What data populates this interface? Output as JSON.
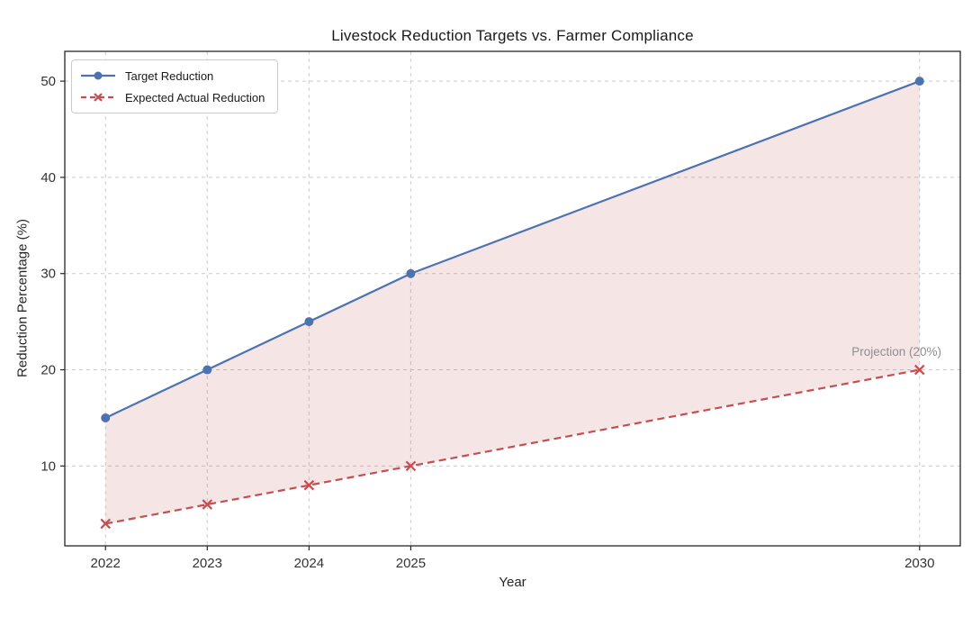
{
  "chart_data": {
    "type": "line",
    "title": "Livestock Reduction Targets vs. Farmer Compliance",
    "xlabel": "Year",
    "ylabel": "Reduction Percentage (%)",
    "x": [
      2022,
      2023,
      2024,
      2025,
      2030
    ],
    "x_tick_labels": [
      "2022",
      "2023",
      "2024",
      "2025",
      "2030"
    ],
    "y_ticks": [
      10,
      20,
      30,
      40,
      50
    ],
    "xlim": [
      2021.6,
      2030.4
    ],
    "ylim": [
      1.7,
      53.1
    ],
    "grid": true,
    "grid_color": "#cccccc",
    "axis_color": "#262626",
    "legend_position": "upper-left",
    "series": [
      {
        "name": "Target Reduction",
        "values": [
          15,
          20,
          25,
          30,
          50
        ],
        "color": "#4C72B0",
        "line_style": "solid",
        "marker": "circle"
      },
      {
        "name": "Expected Actual Reduction",
        "values": [
          4,
          6,
          8,
          10,
          20
        ],
        "color": "#C44E52",
        "line_style": "dashed",
        "marker": "x"
      }
    ],
    "fill_between": {
      "between": [
        "Target Reduction",
        "Expected Actual Reduction"
      ],
      "color": "#C44E52",
      "opacity": 0.15
    },
    "annotation": {
      "text": "Projection (20%)",
      "at_x": 2030,
      "at_y": 20,
      "color": "#8F8F8F"
    }
  }
}
